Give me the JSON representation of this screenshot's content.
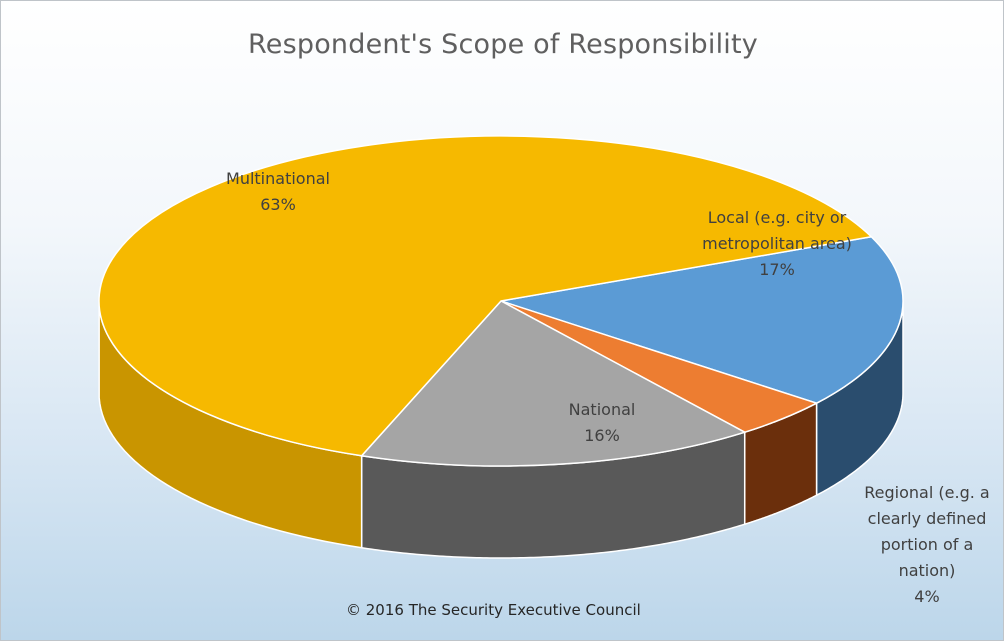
{
  "chart_data": {
    "type": "pie",
    "title": "Respondent's Scope of Responsibility",
    "three_d": true,
    "slices": [
      {
        "label": "Multinational",
        "lines": [
          "Multinational",
          "63%"
        ],
        "value": 63,
        "color": "#f6b900",
        "side_color": "#c99500"
      },
      {
        "label": "Local (e.g. city or metropolitan area)",
        "lines": [
          "Local (e.g. city or",
          "metropolitan area)",
          "17%"
        ],
        "value": 17,
        "color": "#5b9bd5",
        "side_color": "#2a4d6e"
      },
      {
        "label": "Regional (e.g. a clearly defined portion of a nation)",
        "lines": [
          "Regional (e.g. a",
          "clearly defined",
          "portion of a",
          "nation)",
          "4%"
        ],
        "value": 4,
        "color": "#ed7d31",
        "side_color": "#6b2f0c"
      },
      {
        "label": "National",
        "lines": [
          "National",
          "16%"
        ],
        "value": 16,
        "color": "#a5a5a5",
        "side_color": "#595959"
      }
    ]
  },
  "footer": "© 2016 The Security Executive Council"
}
